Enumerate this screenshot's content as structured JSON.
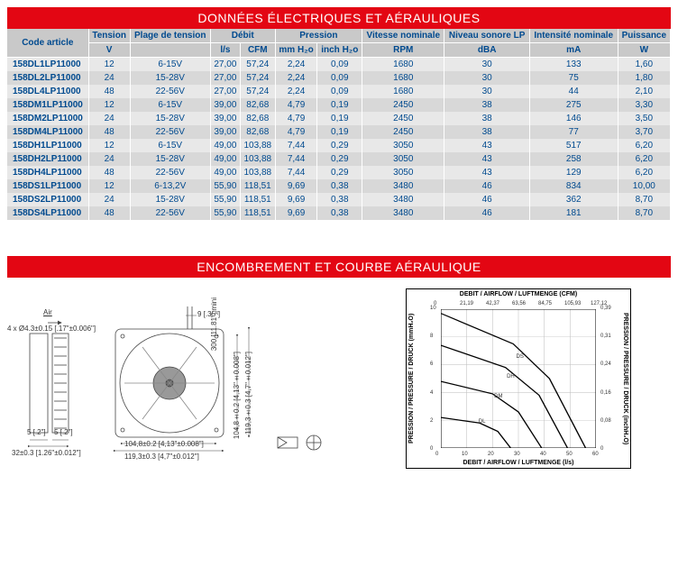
{
  "banner1": "DONNÉES ÉLECTRIQUES ET AÉRAULIQUES",
  "banner2": "ENCOMBREMENT ET COURBE AÉRAULIQUE",
  "headers": {
    "code": "Code article",
    "tension": "Tension",
    "plage": "Plage de tension",
    "debit": "Débit",
    "pression": "Pression",
    "vitesse": "Vitesse nominale",
    "niveau": "Niveau sonore LP",
    "intensite": "Intensité nominale",
    "puissance": "Puissance"
  },
  "units": {
    "tension": "V",
    "plage": "",
    "debit_ls": "l/s",
    "debit_cfm": "CFM",
    "pression_mm": "mm H₂o",
    "pression_in": "inch H₂o",
    "vitesse": "RPM",
    "niveau": "dBA",
    "intensite": "mA",
    "puissance": "W"
  },
  "rows": [
    {
      "code": "158DL1LP11000",
      "v": "12",
      "plage": "6-15V",
      "ls": "27,00",
      "cfm": "57,24",
      "mm": "2,24",
      "in": "0,09",
      "rpm": "1680",
      "dba": "30",
      "ma": "133",
      "w": "1,60"
    },
    {
      "code": "158DL2LP11000",
      "v": "24",
      "plage": "15-28V",
      "ls": "27,00",
      "cfm": "57,24",
      "mm": "2,24",
      "in": "0,09",
      "rpm": "1680",
      "dba": "30",
      "ma": "75",
      "w": "1,80"
    },
    {
      "code": "158DL4LP11000",
      "v": "48",
      "plage": "22-56V",
      "ls": "27,00",
      "cfm": "57,24",
      "mm": "2,24",
      "in": "0,09",
      "rpm": "1680",
      "dba": "30",
      "ma": "44",
      "w": "2,10"
    },
    {
      "code": "158DM1LP11000",
      "v": "12",
      "plage": "6-15V",
      "ls": "39,00",
      "cfm": "82,68",
      "mm": "4,79",
      "in": "0,19",
      "rpm": "2450",
      "dba": "38",
      "ma": "275",
      "w": "3,30"
    },
    {
      "code": "158DM2LP11000",
      "v": "24",
      "plage": "15-28V",
      "ls": "39,00",
      "cfm": "82,68",
      "mm": "4,79",
      "in": "0,19",
      "rpm": "2450",
      "dba": "38",
      "ma": "146",
      "w": "3,50"
    },
    {
      "code": "158DM4LP11000",
      "v": "48",
      "plage": "22-56V",
      "ls": "39,00",
      "cfm": "82,68",
      "mm": "4,79",
      "in": "0,19",
      "rpm": "2450",
      "dba": "38",
      "ma": "77",
      "w": "3,70"
    },
    {
      "code": "158DH1LP11000",
      "v": "12",
      "plage": "6-15V",
      "ls": "49,00",
      "cfm": "103,88",
      "mm": "7,44",
      "in": "0,29",
      "rpm": "3050",
      "dba": "43",
      "ma": "517",
      "w": "6,20"
    },
    {
      "code": "158DH2LP11000",
      "v": "24",
      "plage": "15-28V",
      "ls": "49,00",
      "cfm": "103,88",
      "mm": "7,44",
      "in": "0,29",
      "rpm": "3050",
      "dba": "43",
      "ma": "258",
      "w": "6,20"
    },
    {
      "code": "158DH4LP11000",
      "v": "48",
      "plage": "22-56V",
      "ls": "49,00",
      "cfm": "103,88",
      "mm": "7,44",
      "in": "0,29",
      "rpm": "3050",
      "dba": "43",
      "ma": "129",
      "w": "6,20"
    },
    {
      "code": "158DS1LP11000",
      "v": "12",
      "plage": "6-13,2V",
      "ls": "55,90",
      "cfm": "118,51",
      "mm": "9,69",
      "in": "0,38",
      "rpm": "3480",
      "dba": "46",
      "ma": "834",
      "w": "10,00"
    },
    {
      "code": "158DS2LP11000",
      "v": "24",
      "plage": "15-28V",
      "ls": "55,90",
      "cfm": "118,51",
      "mm": "9,69",
      "in": "0,38",
      "rpm": "3480",
      "dba": "46",
      "ma": "362",
      "w": "8,70"
    },
    {
      "code": "158DS4LP11000",
      "v": "48",
      "plage": "22-56V",
      "ls": "55,90",
      "cfm": "118,51",
      "mm": "9,69",
      "in": "0,38",
      "rpm": "3480",
      "dba": "46",
      "ma": "181",
      "w": "8,70"
    }
  ],
  "drawing": {
    "air": "Air",
    "hole": "4 x Ø4.3±0.15 [.17\"±0.006\"]",
    "dim5a": "5 [.2\"]",
    "dim5b": "5 [.2\"]",
    "dim32": "32±0.3 [1.26\"±0.012\"]",
    "dim104": "104,8±0.2 [4,13\"±0.008\"]",
    "dim119": "119,3±0.3 [4,7\"±0.012\"]",
    "dim104v": "104,8±0.2 [4,13\"±0.008\"]",
    "dim119v": "119,3±0.3 [4,7\"±0.012\"]",
    "dim9": "9 [.35\"]",
    "dim300": "300 [11.81\"] mini"
  },
  "chart": {
    "title_top": "DEBIT / AIRFLOW / LUFTMENGE (CFM)",
    "title_bottom": "DEBIT / AIRFLOW / LUFTMENGE (l/s)",
    "ylabel_left": "PRESSION / PRESSURE / DRUCK (mmH₂O)",
    "ylabel_right": "PRESSION / PRESSURE / DRUCK (inchH₂O)",
    "x_range": [
      0,
      60
    ],
    "y_range": [
      0,
      10
    ],
    "x_ticks_bottom": [
      "0",
      "10",
      "20",
      "30",
      "40",
      "50",
      "60"
    ],
    "x_ticks_top": [
      "0",
      "21,19",
      "42,37",
      "63,56",
      "84,75",
      "105,93",
      "127,12"
    ],
    "y_ticks_left": [
      "0",
      "2",
      "4",
      "6",
      "8",
      "10"
    ],
    "y_ticks_right": [
      "0",
      "0,08",
      "0,16",
      "0,24",
      "0,31",
      "0,39"
    ],
    "grid_color": "#bbbbbb",
    "line_color": "#000000",
    "series_labels": [
      "DL",
      "DM",
      "DH",
      "DS"
    ],
    "series": [
      {
        "name": "DL",
        "points": [
          [
            0,
            2.2
          ],
          [
            15,
            1.8
          ],
          [
            22,
            1.2
          ],
          [
            27,
            0
          ]
        ]
      },
      {
        "name": "DM",
        "points": [
          [
            0,
            4.8
          ],
          [
            20,
            3.9
          ],
          [
            30,
            2.6
          ],
          [
            39,
            0
          ]
        ]
      },
      {
        "name": "DH",
        "points": [
          [
            0,
            7.4
          ],
          [
            25,
            5.8
          ],
          [
            38,
            3.8
          ],
          [
            49,
            0
          ]
        ]
      },
      {
        "name": "DS",
        "points": [
          [
            0,
            9.7
          ],
          [
            28,
            7.5
          ],
          [
            42,
            5.0
          ],
          [
            56,
            0
          ]
        ]
      }
    ]
  }
}
